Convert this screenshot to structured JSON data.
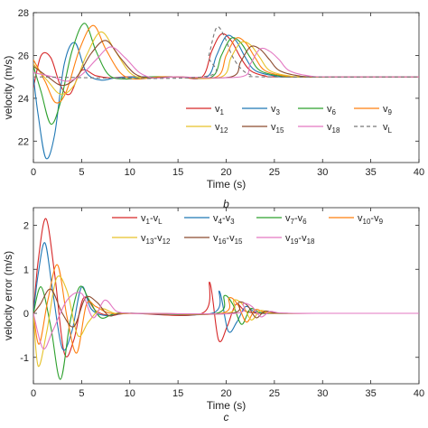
{
  "chart_data": [
    {
      "type": "line",
      "panel_label": "b",
      "xlabel": "Time (s)",
      "ylabel": "velocity (m/s)",
      "xlim": [
        0,
        40
      ],
      "ylim": [
        21,
        28
      ],
      "xticks": [
        0,
        5,
        10,
        15,
        20,
        25,
        30,
        35,
        40
      ],
      "yticks": [
        22,
        24,
        26,
        28
      ],
      "grid": false,
      "legend_position": "lower-right",
      "legend_columns": 4,
      "series": [
        {
          "name": "v1",
          "label_main": "v",
          "label_sub": "1",
          "color": "#d62728",
          "dash": false,
          "x": [
            0,
            0.8,
            1.8,
            2.8,
            3.8,
            5,
            6.5,
            8,
            9.5,
            12,
            15,
            17.5,
            18.5,
            19.5,
            20.5,
            21.5,
            22.5,
            24,
            26,
            40
          ],
          "y": [
            24.5,
            26.0,
            25.9,
            24.6,
            24.2,
            25.3,
            25.05,
            24.95,
            25.0,
            25.0,
            25.0,
            25.0,
            26.2,
            27.0,
            26.7,
            25.9,
            25.3,
            25.05,
            25.0,
            25.0
          ]
        },
        {
          "name": "v3",
          "label_main": "v",
          "label_sub": "3",
          "color": "#1f77b4",
          "dash": false,
          "x": [
            0,
            0.5,
            1.3,
            2.2,
            3.2,
            4.3,
            5.5,
            7,
            8.5,
            11,
            15,
            18,
            19,
            20,
            21,
            22,
            23,
            25,
            27,
            40
          ],
          "y": [
            25.0,
            23.2,
            21.2,
            22.3,
            25.6,
            26.6,
            25.2,
            24.85,
            24.95,
            25.0,
            25.0,
            25.0,
            26.0,
            26.9,
            26.7,
            25.9,
            25.3,
            25.05,
            25.0,
            25.0
          ]
        },
        {
          "name": "v6",
          "label_main": "v",
          "label_sub": "6",
          "color": "#2ca02c",
          "dash": false,
          "x": [
            0,
            0.8,
            1.8,
            2.8,
            4,
            5.3,
            6.5,
            7.8,
            9.5,
            12,
            15,
            18.5,
            19.5,
            20.5,
            21.5,
            22.5,
            23.5,
            25.5,
            28,
            40
          ],
          "y": [
            25.5,
            24.3,
            22.8,
            23.8,
            26.2,
            27.5,
            26.2,
            25.1,
            24.9,
            25.0,
            25.0,
            25.0,
            26.0,
            26.8,
            26.6,
            25.9,
            25.3,
            25.05,
            25.0,
            25.0
          ]
        },
        {
          "name": "v9",
          "label_main": "v",
          "label_sub": "9",
          "color": "#ff7f0e",
          "dash": false,
          "x": [
            0,
            1.2,
            2.3,
            3.4,
            4.8,
            6.2,
            7.5,
            9,
            10.5,
            13,
            15,
            19,
            20,
            21,
            22,
            23,
            24,
            26,
            28.5,
            40
          ],
          "y": [
            25.8,
            24.8,
            23.8,
            24.3,
            26.3,
            27.4,
            26.3,
            25.2,
            24.9,
            25.0,
            25.0,
            25.0,
            26.0,
            26.8,
            26.6,
            25.9,
            25.3,
            25.05,
            25.0,
            25.0
          ]
        },
        {
          "name": "v12",
          "label_main": "v",
          "label_sub": "12",
          "color": "#e6c229",
          "dash": false,
          "x": [
            0,
            1.5,
            2.8,
            4.2,
            5.5,
            7,
            8.5,
            10,
            11.5,
            14,
            15,
            19.5,
            20.5,
            21.5,
            22.5,
            23.5,
            24.5,
            26.5,
            29,
            40
          ],
          "y": [
            25.6,
            24.8,
            24.2,
            24.6,
            26.0,
            27.1,
            26.2,
            25.2,
            24.95,
            25.0,
            25.0,
            25.0,
            25.9,
            26.6,
            26.5,
            25.9,
            25.3,
            25.05,
            25.0,
            25.0
          ]
        },
        {
          "name": "v15",
          "label_main": "v",
          "label_sub": "15",
          "color": "#8c4a2f",
          "dash": false,
          "x": [
            0,
            1.5,
            3,
            4.5,
            6,
            7.5,
            9,
            10.5,
            12,
            14,
            15,
            20.5,
            21.5,
            22.5,
            23.5,
            24.5,
            25.5,
            27.5,
            30,
            40
          ],
          "y": [
            25.5,
            25.0,
            24.6,
            25.0,
            26.1,
            26.7,
            25.9,
            25.15,
            24.95,
            25.0,
            25.0,
            25.0,
            25.7,
            26.4,
            26.3,
            25.8,
            25.3,
            25.05,
            25.0,
            25.0
          ]
        },
        {
          "name": "v18",
          "label_main": "v",
          "label_sub": "18",
          "color": "#e377c2",
          "dash": false,
          "x": [
            0,
            2,
            3.5,
            5,
            6.5,
            8,
            9.5,
            11,
            12.5,
            14.5,
            15,
            21.5,
            22.5,
            23.5,
            24.5,
            25.5,
            26.5,
            28.5,
            31,
            40
          ],
          "y": [
            25.2,
            25.0,
            24.8,
            25.1,
            25.8,
            26.4,
            25.9,
            25.2,
            24.95,
            25.0,
            25.0,
            25.0,
            25.6,
            26.3,
            26.2,
            25.8,
            25.3,
            25.05,
            25.0,
            25.0
          ]
        },
        {
          "name": "vL",
          "label_main": "v",
          "label_sub": "L",
          "color": "#777777",
          "dash": true,
          "x": [
            0,
            17.5,
            18.2,
            19.0,
            19.8,
            20.6,
            21.5,
            22.5,
            24,
            40
          ],
          "y": [
            25.0,
            25.0,
            26.0,
            27.3,
            26.9,
            26.0,
            25.4,
            25.1,
            25.0,
            25.0
          ]
        }
      ]
    },
    {
      "type": "line",
      "panel_label": "c",
      "xlabel": "Time (s)",
      "ylabel": "velocity error (m/s)",
      "xlim": [
        0,
        40
      ],
      "ylim": [
        -1.6,
        2.4
      ],
      "xticks": [
        0,
        5,
        10,
        15,
        20,
        25,
        30,
        35,
        40
      ],
      "yticks": [
        -1,
        0,
        1,
        2
      ],
      "grid": false,
      "legend_position": "top-right",
      "legend_columns": 4,
      "series": [
        {
          "name": "v1-vL",
          "label_main": "v",
          "label_sub": "1",
          "label_main2": "-v",
          "label_sub2": "L",
          "color": "#d62728",
          "x": [
            0,
            0.5,
            1.3,
            2.2,
            3.2,
            4.2,
            5.2,
            6.5,
            8,
            10,
            17.5,
            18.3,
            19.2,
            20.1,
            21,
            22,
            23.5,
            26,
            40
          ],
          "y": [
            0.0,
            1.2,
            2.15,
            0.9,
            -0.9,
            -0.6,
            0.35,
            0.05,
            -0.05,
            0.0,
            0.0,
            0.7,
            -0.6,
            -0.3,
            0.2,
            0.05,
            0.0,
            0.0,
            0.0
          ]
        },
        {
          "name": "v4-v3",
          "label_main": "v",
          "label_sub": "4",
          "label_main2": "-v",
          "label_sub2": "3",
          "color": "#1f77b4",
          "x": [
            0,
            0.5,
            1.2,
            2,
            3,
            4,
            5,
            6,
            7.5,
            10,
            18.5,
            19.3,
            20.2,
            21.1,
            22,
            23,
            24.5,
            27,
            40
          ],
          "y": [
            0.0,
            0.9,
            1.6,
            0.5,
            -0.8,
            -0.4,
            0.6,
            0.1,
            -0.05,
            0.0,
            0.0,
            0.5,
            -0.4,
            -0.2,
            0.15,
            0.03,
            0.0,
            0.0,
            0.0
          ]
        },
        {
          "name": "v7-v6",
          "label_main": "v",
          "label_sub": "7",
          "label_main2": "-v",
          "label_sub2": "6",
          "color": "#2ca02c",
          "x": [
            0,
            0.8,
            1.8,
            2.8,
            3.8,
            4.8,
            5.8,
            7,
            8.5,
            11,
            19,
            19.8,
            20.7,
            21.6,
            22.5,
            23.5,
            25,
            27.5,
            40
          ],
          "y": [
            0.0,
            0.6,
            -0.3,
            -1.5,
            -0.2,
            0.6,
            0.3,
            -0.1,
            0.0,
            0.0,
            0.0,
            0.4,
            0.2,
            -0.25,
            0.1,
            0.02,
            0.0,
            0.0,
            0.0
          ]
        },
        {
          "name": "v10-v9",
          "label_main": "v",
          "label_sub": "10",
          "label_main2": "-v",
          "label_sub2": "9",
          "color": "#ff7f0e",
          "x": [
            0,
            0.6,
            1.5,
            2.5,
            3.5,
            4.5,
            5.5,
            6.5,
            8,
            11,
            19.5,
            20.3,
            21.2,
            22.1,
            23,
            24,
            25.5,
            28,
            40
          ],
          "y": [
            0.0,
            -0.7,
            0.3,
            1.1,
            -0.1,
            -0.9,
            0.2,
            0.15,
            0.0,
            0.0,
            0.0,
            0.35,
            0.2,
            -0.2,
            0.08,
            0.02,
            0.0,
            0.0,
            0.0
          ]
        },
        {
          "name": "v13-v12",
          "label_main": "v",
          "label_sub": "13",
          "label_main2": "-v",
          "label_sub2": "12",
          "color": "#e6c229",
          "x": [
            0,
            0.5,
            1.4,
            2.4,
            3.5,
            4.6,
            5.7,
            7,
            8.5,
            11,
            20,
            20.8,
            21.7,
            22.6,
            23.5,
            24.5,
            26,
            28.5,
            40
          ],
          "y": [
            0.0,
            -1.2,
            -0.4,
            0.8,
            0.5,
            -0.5,
            -0.2,
            0.1,
            0.0,
            0.0,
            0.0,
            0.3,
            0.2,
            -0.15,
            0.06,
            0.02,
            0.0,
            0.0,
            0.0
          ]
        },
        {
          "name": "v16-v15",
          "label_main": "v",
          "label_sub": "16",
          "label_main2": "-v",
          "label_sub2": "15",
          "color": "#8c4a2f",
          "x": [
            0,
            0.7,
            1.8,
            3,
            4.2,
            5.4,
            6.6,
            7.8,
            9,
            11.5,
            20.5,
            21.3,
            22.2,
            23.1,
            24,
            25,
            26.5,
            29,
            40
          ],
          "y": [
            0.0,
            0.2,
            0.55,
            0.0,
            -0.3,
            0.35,
            0.25,
            -0.05,
            0.0,
            0.0,
            0.0,
            0.25,
            0.18,
            -0.1,
            0.05,
            0.01,
            0.0,
            0.0,
            0.0
          ]
        },
        {
          "name": "v19-v18",
          "label_main": "v",
          "label_sub": "19",
          "label_main2": "-v",
          "label_sub2": "18",
          "color": "#e377c2",
          "x": [
            0,
            1,
            2,
            3.5,
            5,
            6.2,
            7.4,
            8.6,
            10,
            12,
            21,
            21.8,
            22.7,
            23.6,
            24.5,
            25.5,
            27,
            29.5,
            40
          ],
          "y": [
            0.0,
            -0.8,
            -0.4,
            0.3,
            0.45,
            -0.1,
            0.3,
            0.05,
            0.0,
            0.0,
            0.0,
            0.22,
            0.15,
            -0.08,
            0.04,
            0.01,
            0.0,
            0.0,
            0.0
          ]
        }
      ]
    }
  ]
}
